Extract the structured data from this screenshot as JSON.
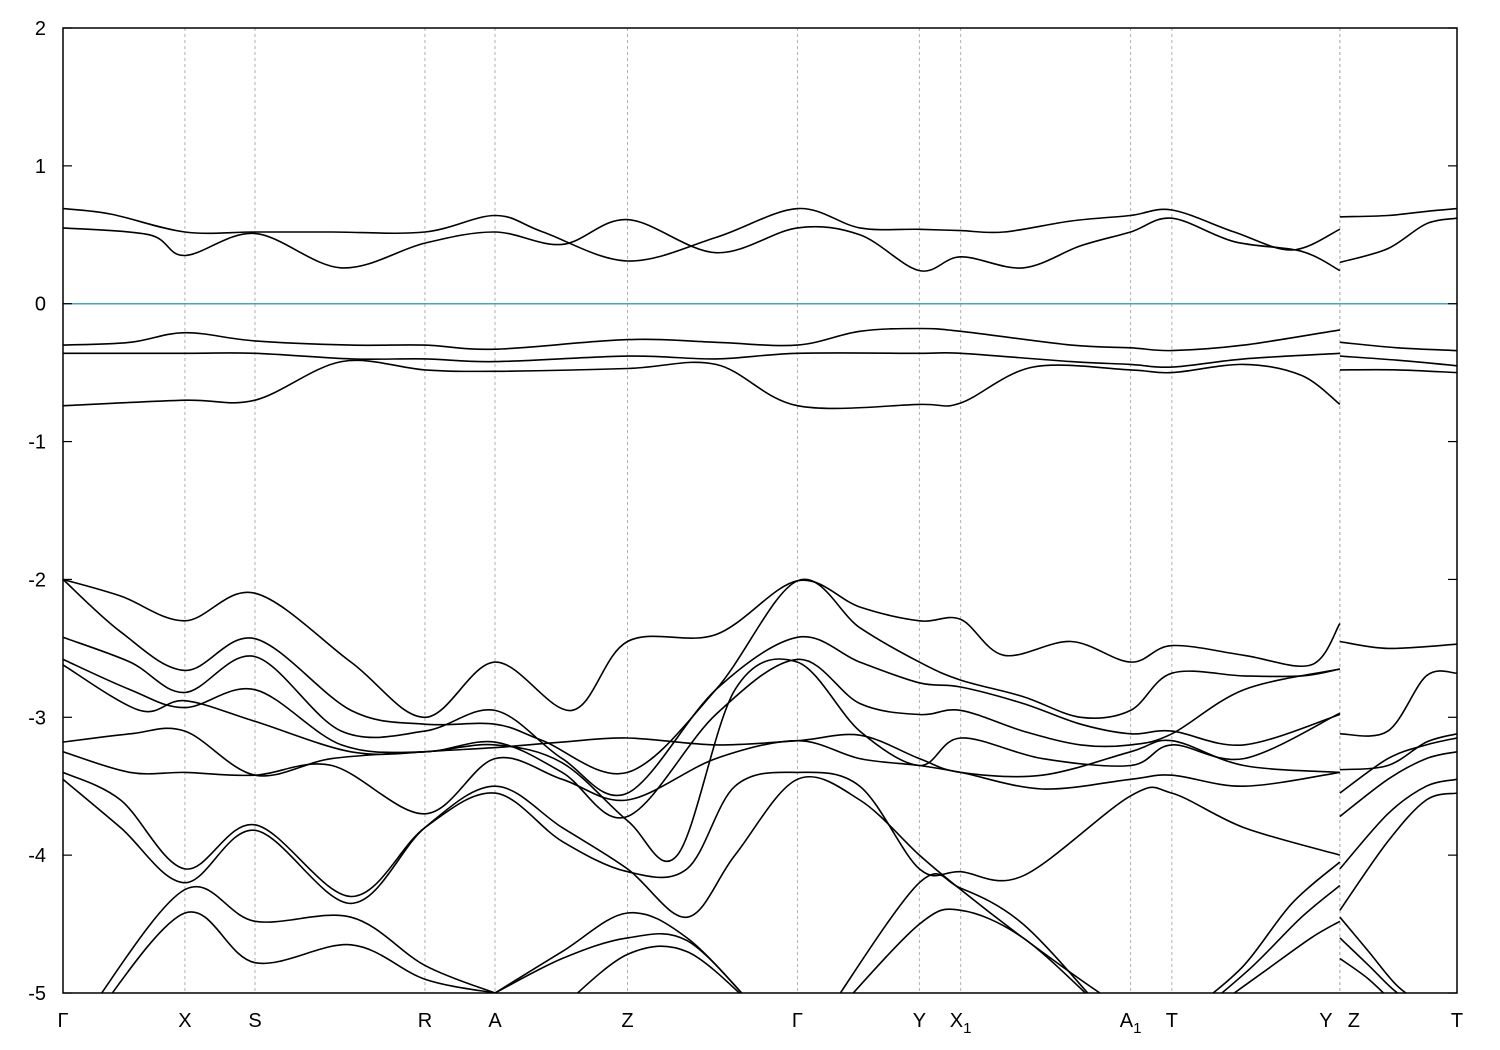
{
  "chart_data": {
    "type": "line",
    "title": "",
    "xlabel": "",
    "ylabel": "",
    "ylim": [
      -5,
      2
    ],
    "y_ticks": [
      2,
      1,
      0,
      -1,
      -2,
      -3,
      -4,
      -5
    ],
    "grid": "vertical dashed lines at high-symmetry points",
    "reference_line": {
      "y": 0,
      "color": "#4aa3c0"
    },
    "line_color": "#000000",
    "x_points": [
      {
        "label": "Γ",
        "sub": "",
        "pos": 0.0
      },
      {
        "label": "X",
        "sub": "",
        "pos": 1.27
      },
      {
        "label": "S",
        "sub": "",
        "pos": 2.0
      },
      {
        "label": "R",
        "sub": "",
        "pos": 3.77
      },
      {
        "label": "A",
        "sub": "",
        "pos": 4.5
      },
      {
        "label": "Z",
        "sub": "",
        "pos": 5.88
      },
      {
        "label": "Γ",
        "sub": "",
        "pos": 7.65
      },
      {
        "label": "Y",
        "sub": "",
        "pos": 8.92
      },
      {
        "label": "X",
        "sub": "1",
        "pos": 9.35
      },
      {
        "label": "A",
        "sub": "1",
        "pos": 11.12
      },
      {
        "label": "T",
        "sub": "",
        "pos": 11.55
      },
      {
        "label": "Y",
        "sub": "",
        "pos": 13.3
      },
      {
        "label": "Z",
        "sub": "",
        "pos": 13.3
      },
      {
        "label": "T",
        "sub": "",
        "pos": 14.52
      }
    ],
    "series": [
      {
        "x": [
          0,
          0.5,
          1.27,
          2.0,
          2.8,
          3.77,
          4.5,
          5.0,
          5.88,
          6.8,
          7.65,
          8.3,
          8.92,
          9.35,
          9.8,
          10.5,
          11.12,
          11.55,
          12.2,
          12.8,
          13.3
        ],
        "y": [
          0.69,
          0.65,
          0.52,
          0.52,
          0.52,
          0.52,
          0.64,
          0.52,
          0.31,
          0.48,
          0.69,
          0.55,
          0.54,
          0.53,
          0.52,
          0.6,
          0.64,
          0.68,
          0.52,
          0.39,
          0.54
        ]
      },
      {
        "x": [
          0,
          0.9,
          1.27,
          2.0,
          2.9,
          3.77,
          4.5,
          5.2,
          5.88,
          6.8,
          7.65,
          8.3,
          8.92,
          9.35,
          10.0,
          10.6,
          11.12,
          11.55,
          12.2,
          12.9,
          13.3
        ],
        "y": [
          0.55,
          0.5,
          0.35,
          0.51,
          0.26,
          0.44,
          0.52,
          0.43,
          0.61,
          0.37,
          0.55,
          0.5,
          0.24,
          0.34,
          0.26,
          0.42,
          0.52,
          0.62,
          0.45,
          0.38,
          0.24
        ]
      },
      {
        "x": [
          13.3,
          13.8,
          14.2,
          14.52
        ],
        "y": [
          0.63,
          0.64,
          0.67,
          0.69
        ]
      },
      {
        "x": [
          13.3,
          13.8,
          14.2,
          14.52
        ],
        "y": [
          0.3,
          0.4,
          0.58,
          0.62
        ]
      },
      {
        "x": [
          0,
          0.7,
          1.27,
          2.0,
          3.0,
          3.77,
          4.5,
          5.88,
          6.8,
          7.65,
          8.3,
          8.92,
          9.35,
          10.5,
          11.12,
          11.55,
          12.3,
          13.3
        ],
        "y": [
          -0.3,
          -0.28,
          -0.21,
          -0.27,
          -0.3,
          -0.3,
          -0.33,
          -0.26,
          -0.28,
          -0.3,
          -0.2,
          -0.18,
          -0.2,
          -0.3,
          -0.32,
          -0.34,
          -0.3,
          -0.19
        ]
      },
      {
        "x": [
          0,
          1.27,
          2.0,
          3.0,
          3.77,
          4.5,
          5.88,
          6.8,
          7.65,
          8.92,
          9.35,
          10.5,
          11.12,
          11.55,
          12.3,
          13.3
        ],
        "y": [
          -0.36,
          -0.36,
          -0.36,
          -0.4,
          -0.4,
          -0.42,
          -0.38,
          -0.4,
          -0.36,
          -0.36,
          -0.36,
          -0.42,
          -0.44,
          -0.46,
          -0.4,
          -0.36
        ]
      },
      {
        "x": [
          0,
          1.27,
          2.0,
          2.9,
          3.77,
          4.5,
          5.88,
          6.8,
          7.65,
          8.92,
          9.35,
          10.1,
          11.12,
          11.55,
          12.3,
          12.9,
          13.3
        ],
        "y": [
          -0.74,
          -0.7,
          -0.7,
          -0.42,
          -0.48,
          -0.49,
          -0.47,
          -0.44,
          -0.74,
          -0.73,
          -0.72,
          -0.46,
          -0.48,
          -0.5,
          -0.44,
          -0.52,
          -0.73
        ]
      },
      {
        "x": [
          13.3,
          13.9,
          14.52
        ],
        "y": [
          -0.28,
          -0.32,
          -0.34
        ]
      },
      {
        "x": [
          13.3,
          13.9,
          14.52
        ],
        "y": [
          -0.38,
          -0.41,
          -0.45
        ]
      },
      {
        "x": [
          13.3,
          13.9,
          14.52
        ],
        "y": [
          -0.48,
          -0.48,
          -0.5
        ]
      },
      {
        "x": [
          0,
          0.6,
          1.27,
          2.0,
          3.0,
          3.77,
          4.5,
          5.3,
          5.88,
          6.8,
          7.65,
          8.3,
          8.92,
          9.35,
          9.8,
          10.5,
          11.12,
          11.55,
          12.3,
          13.0,
          13.3
        ],
        "y": [
          -2.0,
          -2.12,
          -2.3,
          -2.1,
          -2.6,
          -3.0,
          -2.6,
          -2.95,
          -2.45,
          -2.4,
          -2.01,
          -2.2,
          -2.3,
          -2.29,
          -2.55,
          -2.45,
          -2.6,
          -2.48,
          -2.55,
          -2.62,
          -2.32
        ]
      },
      {
        "x": [
          0,
          0.6,
          1.27,
          2.0,
          3.0,
          3.77,
          4.5,
          5.0,
          5.88,
          6.8,
          7.65,
          8.3,
          8.92,
          9.35,
          10.0,
          10.6,
          11.12,
          11.55,
          12.3,
          12.9,
          13.3
        ],
        "y": [
          -2.0,
          -2.38,
          -2.66,
          -2.43,
          -2.95,
          -3.05,
          -3.05,
          -3.17,
          -3.4,
          -2.8,
          -2.01,
          -2.35,
          -2.6,
          -2.73,
          -2.85,
          -3.0,
          -2.95,
          -2.68,
          -2.7,
          -2.7,
          -2.65
        ]
      },
      {
        "x": [
          0,
          0.7,
          1.27,
          2.0,
          2.9,
          3.77,
          4.5,
          5.2,
          5.88,
          6.8,
          7.65,
          8.3,
          8.92,
          9.35,
          10.0,
          10.6,
          11.12,
          11.55,
          12.3,
          13.3
        ],
        "y": [
          -2.42,
          -2.6,
          -2.82,
          -2.56,
          -3.1,
          -3.1,
          -2.95,
          -3.3,
          -3.55,
          -2.8,
          -2.42,
          -2.6,
          -2.75,
          -2.78,
          -2.9,
          -3.05,
          -3.12,
          -3.1,
          -3.2,
          -2.98
        ]
      },
      {
        "x": [
          0,
          0.7,
          1.27,
          2.0,
          2.9,
          3.77,
          4.5,
          5.2,
          5.88,
          6.8,
          7.65,
          8.3,
          8.92,
          9.35,
          10.0,
          10.6,
          11.12,
          11.55,
          12.3,
          13.3
        ],
        "y": [
          -2.58,
          -2.8,
          -2.93,
          -2.8,
          -3.2,
          -3.25,
          -3.18,
          -3.4,
          -3.72,
          -2.98,
          -2.58,
          -2.9,
          -2.98,
          -2.95,
          -3.1,
          -3.2,
          -3.2,
          -3.12,
          -2.8,
          -2.65
        ]
      },
      {
        "x": [
          0,
          0.8,
          1.27,
          2.0,
          3.0,
          3.77,
          4.5,
          5.2,
          5.88,
          6.4,
          7.0,
          7.65,
          8.3,
          8.92,
          9.35,
          10.2,
          11.12,
          11.55,
          12.3,
          13.3
        ],
        "y": [
          -2.62,
          -2.95,
          -2.88,
          -3.03,
          -3.25,
          -3.25,
          -3.2,
          -3.33,
          -3.75,
          -4.0,
          -2.8,
          -2.6,
          -3.1,
          -3.35,
          -3.15,
          -3.3,
          -3.35,
          -3.2,
          -3.3,
          -2.97
        ]
      },
      {
        "x": [
          0,
          0.7,
          1.27,
          2.0,
          2.8,
          3.77,
          4.5,
          5.2,
          5.88,
          6.8,
          7.65,
          8.3,
          8.92,
          9.35,
          10.2,
          11.12,
          11.55,
          12.3,
          13.3
        ],
        "y": [
          -3.18,
          -3.12,
          -3.1,
          -3.42,
          -3.3,
          -3.25,
          -3.22,
          -3.18,
          -3.15,
          -3.2,
          -3.17,
          -3.13,
          -3.3,
          -3.4,
          -3.42,
          -3.25,
          -3.17,
          -3.35,
          -3.4
        ]
      },
      {
        "x": [
          0,
          0.7,
          1.27,
          2.0,
          2.8,
          3.77,
          4.5,
          5.2,
          5.88,
          6.8,
          7.65,
          8.3,
          8.92,
          9.35,
          10.2,
          11.12,
          11.55,
          12.3,
          13.3
        ],
        "y": [
          -3.25,
          -3.4,
          -3.4,
          -3.42,
          -3.35,
          -3.7,
          -3.3,
          -3.45,
          -3.6,
          -3.3,
          -3.17,
          -3.3,
          -3.35,
          -3.4,
          -3.52,
          -3.45,
          -3.42,
          -3.5,
          -3.4
        ]
      },
      {
        "x": [
          0,
          0.6,
          1.27,
          2.0,
          3.0,
          3.77,
          4.5,
          5.2,
          5.88,
          6.5,
          7.0,
          7.65,
          8.3,
          8.92,
          9.35,
          10.0,
          11.12,
          11.55,
          12.3,
          13.3
        ],
        "y": [
          -3.4,
          -3.6,
          -4.1,
          -3.78,
          -4.3,
          -3.8,
          -3.55,
          -3.9,
          -4.12,
          -4.1,
          -3.5,
          -3.4,
          -3.5,
          -4.1,
          -4.12,
          -4.15,
          -3.57,
          -3.55,
          -3.8,
          -4.0
        ]
      },
      {
        "x": [
          0,
          0.6,
          1.27,
          2.0,
          3.0,
          3.77,
          4.5,
          5.2,
          5.88,
          6.5,
          7.0,
          7.65,
          8.3,
          8.92,
          9.35,
          10.0,
          10.8,
          11.3
        ],
        "y": [
          -3.45,
          -3.8,
          -4.2,
          -3.82,
          -4.35,
          -3.8,
          -3.5,
          -3.8,
          -4.1,
          -4.45,
          -4.0,
          -3.45,
          -3.6,
          -4.0,
          -4.25,
          -4.6,
          -5.0,
          -5.2
        ]
      },
      {
        "x": [
          0.3,
          1.27,
          2.0,
          3.0,
          3.77,
          4.5
        ],
        "y": [
          -5.1,
          -4.25,
          -4.48,
          -4.45,
          -4.8,
          -5.0
        ]
      },
      {
        "x": [
          0.3,
          1.27,
          2.0,
          3.0,
          3.77,
          4.5
        ],
        "y": [
          -5.2,
          -4.42,
          -4.78,
          -4.65,
          -4.9,
          -5.0
        ]
      },
      {
        "x": [
          4.5,
          5.2,
          5.88,
          6.5,
          7.2
        ],
        "y": [
          -5.0,
          -4.7,
          -4.42,
          -4.6,
          -5.1
        ]
      },
      {
        "x": [
          4.5,
          5.2,
          5.88,
          6.5,
          7.2
        ],
        "y": [
          -5.0,
          -4.75,
          -4.6,
          -4.62,
          -5.1
        ]
      },
      {
        "x": [
          5.2,
          5.88,
          6.5,
          7.2
        ],
        "y": [
          -5.1,
          -4.72,
          -4.7,
          -5.1
        ]
      },
      {
        "x": [
          8.0,
          8.92,
          9.35,
          10.0,
          10.8
        ],
        "y": [
          -5.1,
          -4.2,
          -4.24,
          -4.5,
          -5.1
        ]
      },
      {
        "x": [
          8.1,
          8.92,
          9.35,
          10.0,
          10.8
        ],
        "y": [
          -5.1,
          -4.5,
          -4.4,
          -4.6,
          -5.1
        ]
      },
      {
        "x": [
          11.8,
          12.3,
          12.8,
          13.3
        ],
        "y": [
          -5.1,
          -4.8,
          -4.35,
          -4.05
        ]
      },
      {
        "x": [
          11.9,
          12.4,
          12.9,
          13.3
        ],
        "y": [
          -5.1,
          -4.8,
          -4.45,
          -4.22
        ]
      },
      {
        "x": [
          12.0,
          12.5,
          13.0,
          13.3
        ],
        "y": [
          -5.1,
          -4.85,
          -4.6,
          -4.48
        ]
      },
      {
        "x": [
          13.3,
          13.8,
          14.52
        ],
        "y": [
          -2.45,
          -2.5,
          -2.47
        ]
      },
      {
        "x": [
          13.3,
          13.8,
          14.2,
          14.52
        ],
        "y": [
          -3.12,
          -3.1,
          -2.7,
          -2.68
        ]
      },
      {
        "x": [
          13.3,
          13.8,
          14.2,
          14.52
        ],
        "y": [
          -3.38,
          -3.35,
          -3.18,
          -3.12
        ]
      },
      {
        "x": [
          13.3,
          13.8,
          14.2,
          14.52
        ],
        "y": [
          -3.55,
          -3.3,
          -3.2,
          -3.15
        ]
      },
      {
        "x": [
          13.3,
          13.8,
          14.2,
          14.52
        ],
        "y": [
          -3.72,
          -3.45,
          -3.3,
          -3.25
        ]
      },
      {
        "x": [
          13.3,
          13.8,
          14.2,
          14.52
        ],
        "y": [
          -4.1,
          -3.7,
          -3.5,
          -3.45
        ]
      },
      {
        "x": [
          13.3,
          13.8,
          14.2,
          14.52
        ],
        "y": [
          -4.4,
          -3.9,
          -3.6,
          -3.55
        ]
      },
      {
        "x": [
          13.3,
          13.6,
          13.9,
          14.2
        ],
        "y": [
          -4.45,
          -4.7,
          -4.95,
          -5.1
        ]
      },
      {
        "x": [
          13.3,
          13.6,
          13.9,
          14.2
        ],
        "y": [
          -4.6,
          -4.8,
          -5.0,
          -5.1
        ]
      },
      {
        "x": [
          13.3,
          13.6,
          13.9
        ],
        "y": [
          -4.75,
          -4.9,
          -5.1
        ]
      }
    ]
  }
}
